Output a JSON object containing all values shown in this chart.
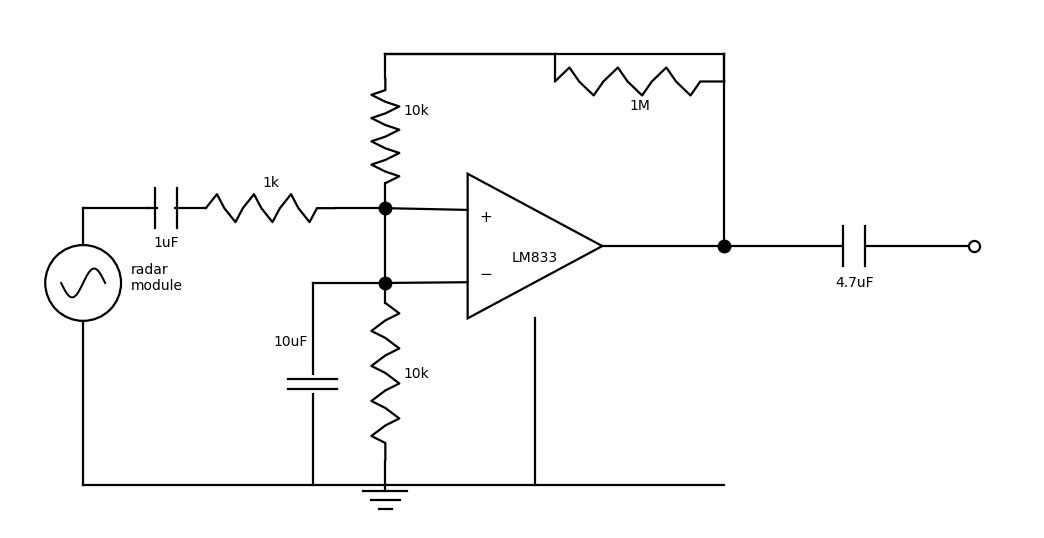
{
  "bg_color": "#ffffff",
  "line_color": "#000000",
  "line_width": 1.6,
  "dot_color": "#000000",
  "dot_size": 9,
  "fig_width": 10.44,
  "fig_height": 5.38,
  "labels": {
    "capacitor1uF": "1uF",
    "resistor1k": "1k",
    "resistor10k_top": "10k",
    "resistor1M": "1M",
    "resistor10k_bot": "10k",
    "capacitor10uF": "10uF",
    "capacitor47uF": "4.7uF",
    "opamp_label": "LM833",
    "source_label": "radar\nmodule"
  }
}
